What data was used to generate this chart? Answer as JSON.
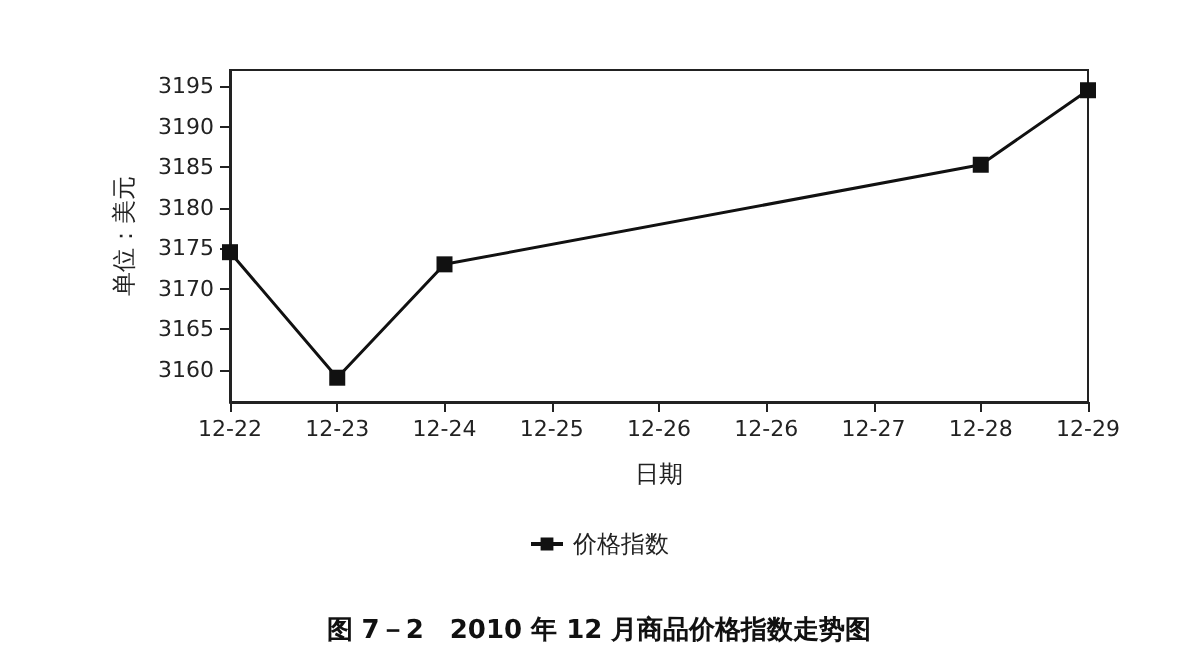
{
  "chart_data": {
    "type": "line",
    "title": "图 7－2　2010 年 12 月商品价格指数走势图",
    "xlabel": "日期",
    "ylabel": "单位：美元",
    "categories": [
      "12-22",
      "12-23",
      "12-24",
      "12-25",
      "12-26",
      "12-26",
      "12-27",
      "12-28",
      "12-29"
    ],
    "series": [
      {
        "name": "价格指数",
        "color": "#111111",
        "values": [
          3174.5,
          3159,
          3173,
          null,
          null,
          null,
          null,
          3185.3,
          3194.5
        ]
      }
    ],
    "ylim": [
      3156,
      3197
    ],
    "yticks": [
      3160,
      3165,
      3170,
      3175,
      3180,
      3185,
      3190,
      3195
    ],
    "grid": false,
    "legend": "bottom",
    "marker": "square",
    "line_style": "solid"
  }
}
